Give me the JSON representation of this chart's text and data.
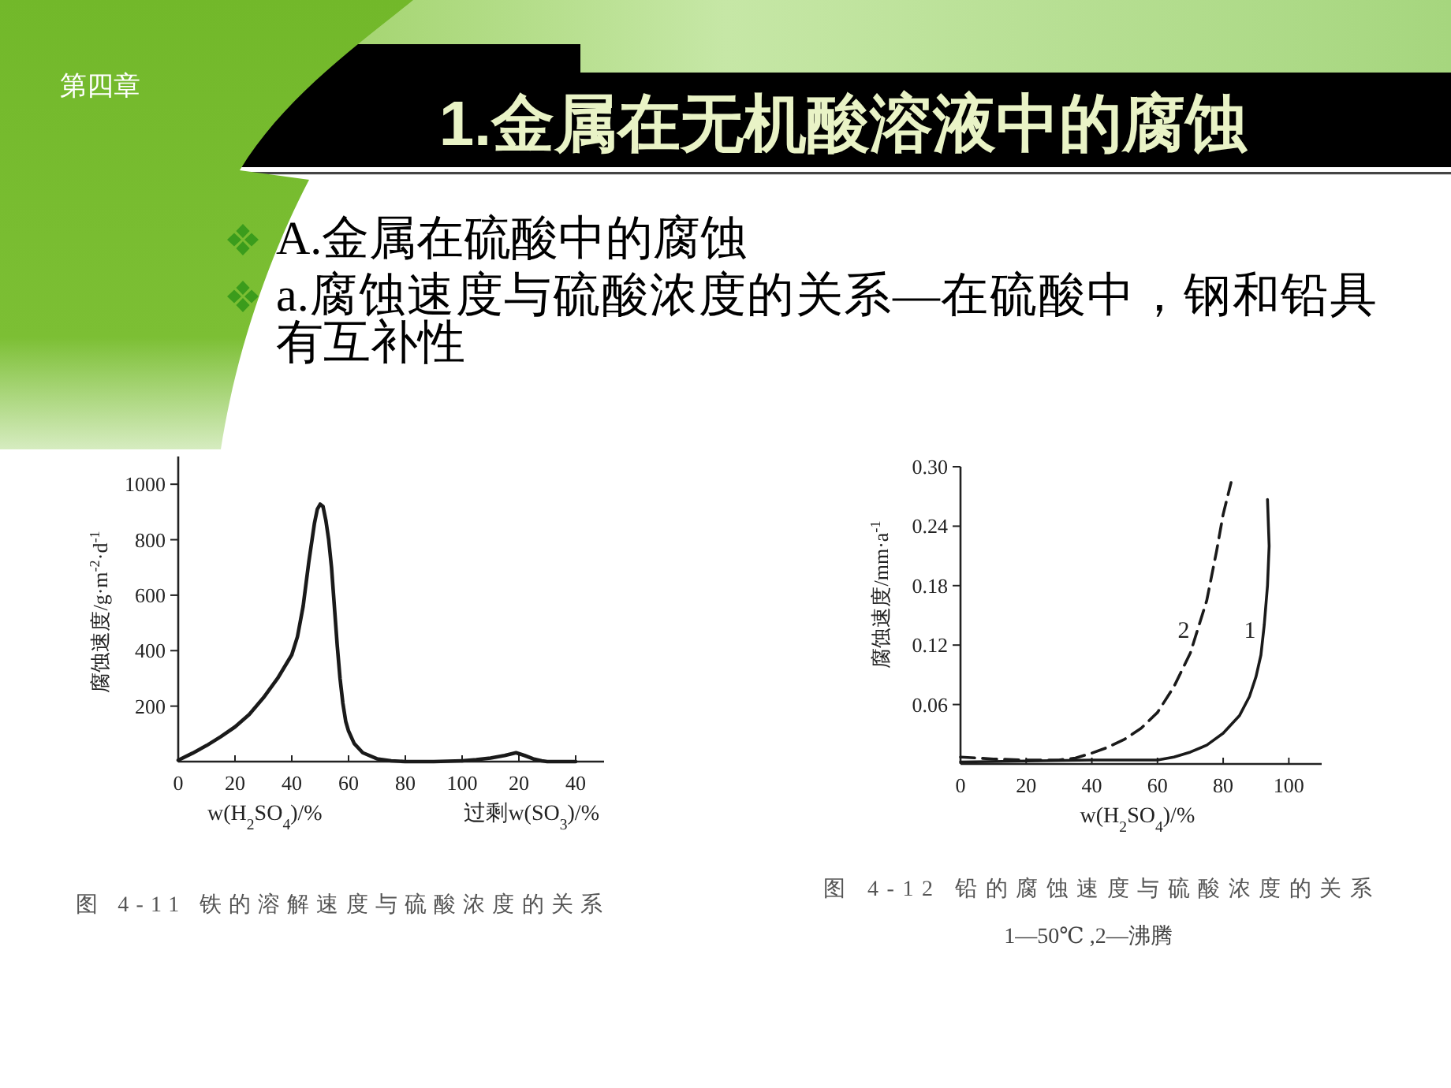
{
  "chart_data": [
    {
      "type": "other",
      "title": "1.金属在无机酸溶液中的腐蚀",
      "annotations": [
        "第四章",
        "A.金属在硫酸中的腐蚀",
        "a.腐蚀速度与硫酸浓度的关系—在硫酸中，钢和铅具有互补性"
      ]
    },
    {
      "type": "line",
      "xlabel": "w(H$_{2}$SO$_{4}$)/%",
      "ylabel": "腐蚀速度/g·m$^{-2}$·d$^{-1}$",
      "annotations": [
        "图 4-11 铁的溶解速度与硫酸浓度的关系"
      ],
      "color": "#1a1a1a",
      "xlim": [
        0,
        100
      ],
      "ylim": [
        0,
        1100
      ],
      "xticks": [
        0,
        20,
        40,
        60,
        80,
        100
      ],
      "yticks": [
        200,
        400,
        600,
        800,
        1000
      ],
      "x": [
        0,
        5,
        10,
        15,
        20,
        25,
        30,
        35,
        40,
        42,
        44,
        46,
        48,
        49,
        50,
        51,
        52,
        53,
        54,
        55,
        56,
        57,
        58,
        59,
        60,
        62,
        65,
        70,
        75,
        80,
        90,
        100
      ],
      "values": [
        5,
        30,
        58,
        90,
        125,
        170,
        230,
        300,
        385,
        450,
        560,
        720,
        860,
        910,
        928,
        920,
        870,
        800,
        700,
        560,
        420,
        300,
        210,
        145,
        110,
        65,
        32,
        10,
        3,
        0,
        0,
        3
      ]
    },
    {
      "type": "line",
      "xlabel": "过剩w(SO$_{3}$)/%",
      "color": "#1a1a1a",
      "xlim": [
        0,
        50
      ],
      "ylim": [
        0,
        1000
      ],
      "tick_labels": "x",
      "xticks": [
        20,
        40
      ],
      "yticks": [
        200,
        400,
        600,
        800,
        1000
      ],
      "x": [
        0,
        5,
        10,
        15,
        19,
        22,
        25,
        28,
        30,
        40
      ],
      "values": [
        3,
        7,
        13,
        22,
        32,
        22,
        10,
        3,
        0,
        0
      ]
    },
    {
      "type": "line",
      "xlabel": "w(H$_{2}$SO$_{4}$)/%",
      "ylabel": "腐蚀速度/mm·a$^{-1}$",
      "annotations": [
        "图 4-12 铅的腐蚀速度与硫酸浓度的关系",
        "1—50℃ ,2—沸腾"
      ],
      "xlim": [
        0,
        110
      ],
      "ylim": [
        0,
        0.3
      ],
      "xticks": [
        0,
        20,
        40,
        60,
        80,
        100
      ],
      "yticks": [
        0.06,
        0.12,
        0.18,
        0.24,
        {
          "value": 0.3,
          "label": "0.30"
        }
      ],
      "series": [
        {
          "name": "1",
          "color": "#1a1a1a",
          "line_style": "solid",
          "x": [
            0,
            20,
            40,
            60,
            65,
            70,
            75,
            80,
            85,
            88,
            90,
            91.5,
            92.5,
            93.5,
            94,
            93.5
          ],
          "values": [
            0.002,
            0.003,
            0.004,
            0.004,
            0.007,
            0.012,
            0.019,
            0.031,
            0.049,
            0.068,
            0.088,
            0.11,
            0.14,
            0.18,
            0.22,
            0.267
          ]
        },
        {
          "name": "2",
          "color": "#1a1a1a",
          "line_style": "dashed",
          "x": [
            0,
            10,
            20,
            30,
            35,
            40,
            45,
            50,
            55,
            60,
            65,
            70,
            75,
            78,
            80,
            82.4
          ],
          "values": [
            0.007,
            0.005,
            0.004,
            0.004,
            0.006,
            0.011,
            0.017,
            0.025,
            0.036,
            0.052,
            0.078,
            0.112,
            0.165,
            0.215,
            0.252,
            0.284
          ]
        }
      ]
    }
  ]
}
